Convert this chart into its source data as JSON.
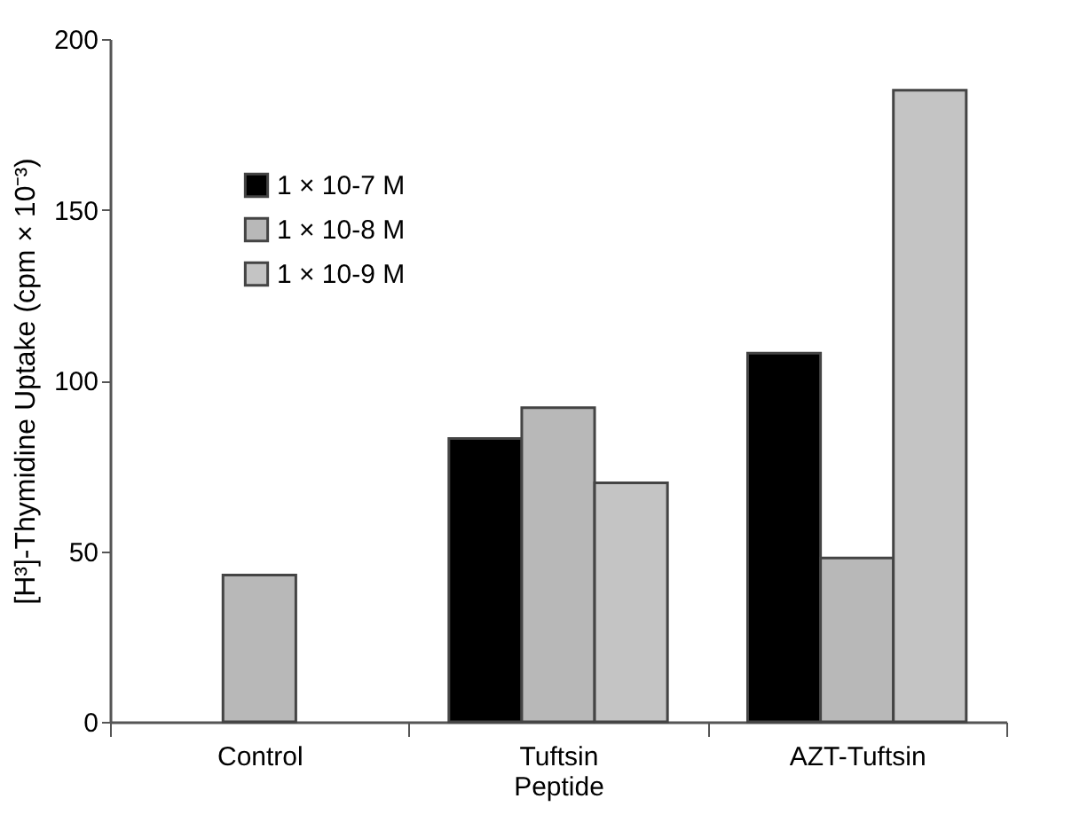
{
  "chart_data": {
    "type": "bar",
    "ylabel": "[H³]-Thymidine Uptake (cpm × 10⁻³)",
    "categories": [
      "Control",
      "Tuftsin Peptide",
      "AZT-Tuftsin"
    ],
    "series": [
      {
        "name": "1 × 10-7 M",
        "color": "#000000",
        "values": [
          null,
          83,
          108
        ]
      },
      {
        "name": "1 × 10-8 M",
        "color": "#b8b8b8",
        "values": [
          43,
          92,
          48
        ]
      },
      {
        "name": "1 × 10-9 M",
        "color": "#c4c4c4",
        "values": [
          null,
          70,
          185
        ]
      }
    ],
    "ylim": [
      0,
      200
    ],
    "yticks": [
      0,
      50,
      100,
      150,
      200
    ],
    "grid": false,
    "legend": "top left"
  }
}
